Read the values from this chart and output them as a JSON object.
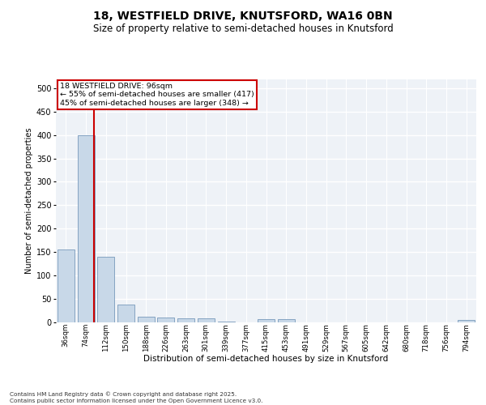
{
  "title1": "18, WESTFIELD DRIVE, KNUTSFORD, WA16 0BN",
  "title2": "Size of property relative to semi-detached houses in Knutsford",
  "xlabel": "Distribution of semi-detached houses by size in Knutsford",
  "ylabel": "Number of semi-detached properties",
  "categories": [
    "36sqm",
    "74sqm",
    "112sqm",
    "150sqm",
    "188sqm",
    "226sqm",
    "263sqm",
    "301sqm",
    "339sqm",
    "377sqm",
    "415sqm",
    "453sqm",
    "491sqm",
    "529sqm",
    "567sqm",
    "605sqm",
    "642sqm",
    "680sqm",
    "718sqm",
    "756sqm",
    "794sqm"
  ],
  "values": [
    155,
    400,
    140,
    38,
    11,
    10,
    8,
    7,
    1,
    0,
    6,
    6,
    0,
    0,
    0,
    0,
    0,
    0,
    0,
    0,
    4
  ],
  "bar_color": "#c8d8e8",
  "bar_edge_color": "#7799bb",
  "annotation_title": "18 WESTFIELD DRIVE: 96sqm",
  "annotation_line1": "← 55% of semi-detached houses are smaller (417)",
  "annotation_line2": "45% of semi-detached houses are larger (348) →",
  "footnote": "Contains HM Land Registry data © Crown copyright and database right 2025.\nContains public sector information licensed under the Open Government Licence v3.0.",
  "ylim": [
    0,
    520
  ],
  "yticks": [
    0,
    50,
    100,
    150,
    200,
    250,
    300,
    350,
    400,
    450,
    500
  ],
  "background_color": "#eef2f7",
  "grid_color": "#ffffff",
  "annotation_box_color": "#ffffff",
  "annotation_box_edge": "#cc0000",
  "property_line_color": "#cc0000",
  "property_line_x": 1.42
}
